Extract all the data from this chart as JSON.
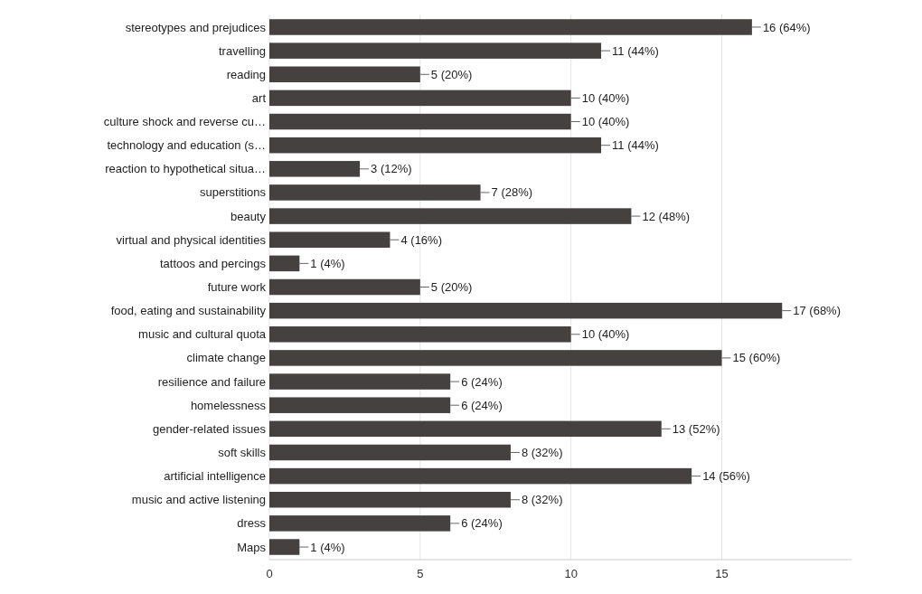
{
  "chart_data": {
    "type": "bar",
    "orientation": "horizontal",
    "categories": [
      "stereotypes and prejudices",
      "travelling",
      "reading",
      "art",
      "culture shock and reverse cu…",
      "technology and education (s…",
      "reaction to hypothetical situa…",
      "superstitions",
      "beauty",
      "virtual and physical identities",
      "tattoos and percings",
      "future work",
      "food, eating and sustainability",
      "music and cultural quota",
      "climate change",
      "resilience and failure",
      "homelessness",
      "gender-related issues",
      "soft skills",
      "artificial intelligence",
      "music and active listening",
      "dress",
      "Maps"
    ],
    "values": [
      16,
      11,
      5,
      10,
      10,
      11,
      3,
      7,
      12,
      4,
      1,
      5,
      17,
      10,
      15,
      6,
      6,
      13,
      8,
      14,
      8,
      6,
      1
    ],
    "value_labels": [
      "16 (64%)",
      "11 (44%)",
      "5 (20%)",
      "10 (40%)",
      "10 (40%)",
      "11 (44%)",
      "3 (12%)",
      "7 (28%)",
      "12 (48%)",
      "4 (16%)",
      "1 (4%)",
      "5 (20%)",
      "17 (68%)",
      "10 (40%)",
      "15 (60%)",
      "6 (24%)",
      "6 (24%)",
      "13 (52%)",
      "8 (32%)",
      "14 (56%)",
      "8 (32%)",
      "6 (24%)",
      "1 (4%)"
    ],
    "color": "#454141",
    "xlim": [
      0,
      19.3
    ],
    "xticks": [
      0,
      5,
      10,
      15
    ],
    "grid": "x"
  }
}
